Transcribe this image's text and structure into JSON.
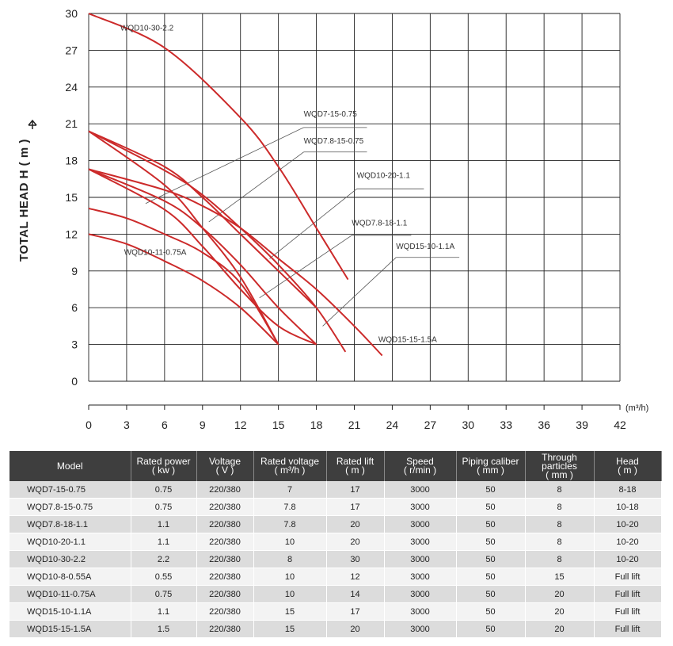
{
  "chart_data": {
    "type": "line",
    "ylabel": "TOTAL HEAD  H ( m )",
    "xunit": "(m³/h)",
    "xlim": [
      0,
      42
    ],
    "ylim": [
      0,
      30
    ],
    "xticks": [
      0,
      3,
      6,
      9,
      12,
      15,
      18,
      21,
      24,
      27,
      30,
      33,
      36,
      39,
      42
    ],
    "yticks": [
      0,
      3,
      6,
      9,
      12,
      15,
      18,
      21,
      24,
      27,
      30
    ],
    "grid": true,
    "line_color": "#cc2a2a",
    "series": [
      {
        "name": "WQD10-30-2.2",
        "x": [
          0,
          6,
          12,
          15,
          18,
          20.5
        ],
        "y": [
          30,
          27.2,
          21.5,
          17.5,
          12.5,
          8.3
        ]
      },
      {
        "name": "WQD7-15-0.75",
        "x": [
          0,
          6,
          9,
          12,
          15
        ],
        "y": [
          20.4,
          16,
          12.5,
          8.5,
          3
        ]
      },
      {
        "name": "WQD7.8-15-0.75",
        "x": [
          0,
          6,
          9,
          12,
          15,
          18
        ],
        "y": [
          17.3,
          14,
          11,
          7.5,
          4.5,
          3
        ]
      },
      {
        "name": "WQD10-20-1.1",
        "x": [
          0,
          6,
          9,
          12,
          15,
          18
        ],
        "y": [
          20.4,
          17.5,
          15,
          12,
          9,
          6
        ]
      },
      {
        "name": "WQD7.8-18-1.1",
        "x": [
          0,
          6,
          9,
          12,
          15,
          18
        ],
        "y": [
          17.3,
          14.7,
          12.5,
          9.5,
          6,
          3
        ]
      },
      {
        "name": "WQD15-10-1.1A",
        "x": [
          0,
          6,
          9,
          12,
          15,
          18,
          20.3
        ],
        "y": [
          20.4,
          17.2,
          15.2,
          12.5,
          9.5,
          6,
          2.4
        ]
      },
      {
        "name": "WQD15-15-1.5A",
        "x": [
          0,
          6,
          9,
          12,
          15,
          18,
          21,
          23.2
        ],
        "y": [
          17.3,
          15.6,
          14.3,
          12.5,
          10,
          7.5,
          4.5,
          2.1
        ]
      },
      {
        "name": "WQD10-11-0.75A",
        "x": [
          0,
          3,
          6,
          9,
          12,
          15
        ],
        "y": [
          12,
          11.2,
          9.8,
          8.2,
          6,
          3
        ]
      },
      {
        "name": "WQD10-8-0.55A",
        "x": [
          0,
          3,
          6,
          9,
          12,
          15
        ],
        "y": [
          14.1,
          13.3,
          12,
          10.5,
          8,
          3
        ]
      }
    ],
    "annotations": [
      {
        "text": "WQD10-30-2.2",
        "x": 2.5,
        "y": 28.6
      },
      {
        "text": "WQD7-15-0.75",
        "x": 17,
        "y": 21.6,
        "line_from": [
          4.5,
          14.5
        ],
        "line_to": [
          22,
          20.7
        ]
      },
      {
        "text": "WQD7.8-15-0.75",
        "x": 17,
        "y": 19.4,
        "line_from": [
          9.5,
          13
        ],
        "line_to": [
          22,
          18.7
        ]
      },
      {
        "text": "WQD10-20-1.1",
        "x": 21.2,
        "y": 16.6,
        "line_from": [
          14.3,
          10
        ],
        "line_to": [
          26.5,
          15.7
        ]
      },
      {
        "text": "WQD7.8-18-1.1",
        "x": 20.8,
        "y": 12.7,
        "line_from": [
          13.5,
          6.8
        ],
        "line_to": [
          25.5,
          11.9
        ]
      },
      {
        "text": "WQD15-10-1.1A",
        "x": 24.3,
        "y": 10.8,
        "line_from": [
          18.5,
          4.5
        ],
        "line_to": [
          29.3,
          10.1
        ]
      },
      {
        "text": "WQD10-11-0.75A",
        "x": 2.8,
        "y": 10.3
      },
      {
        "text": "WQD15-15-1.5A",
        "x": 22.9,
        "y": 3.2
      }
    ]
  },
  "table": {
    "headers": [
      [
        "Model"
      ],
      [
        "Rated power",
        "( kw )"
      ],
      [
        "Voltage",
        "( V )"
      ],
      [
        "Rated voltage",
        "( m³/h )"
      ],
      [
        "Rated lift",
        "( m )"
      ],
      [
        "Speed",
        "( r/min )"
      ],
      [
        "Piping caliber",
        "( mm )"
      ],
      [
        "Through",
        "particles",
        "( mm )"
      ],
      [
        "Head",
        "( m )"
      ]
    ],
    "rows": [
      [
        "WQD7-15-0.75",
        "0.75",
        "220/380",
        "7",
        "17",
        "3000",
        "50",
        "8",
        "8-18"
      ],
      [
        "WQD7.8-15-0.75",
        "0.75",
        "220/380",
        "7.8",
        "17",
        "3000",
        "50",
        "8",
        "10-18"
      ],
      [
        "WQD7.8-18-1.1",
        "1.1",
        "220/380",
        "7.8",
        "20",
        "3000",
        "50",
        "8",
        "10-20"
      ],
      [
        "WQD10-20-1.1",
        "1.1",
        "220/380",
        "10",
        "20",
        "3000",
        "50",
        "8",
        "10-20"
      ],
      [
        "WQD10-30-2.2",
        "2.2",
        "220/380",
        "8",
        "30",
        "3000",
        "50",
        "8",
        "10-20"
      ],
      [
        "WQD10-8-0.55A",
        "0.55",
        "220/380",
        "10",
        "12",
        "3000",
        "50",
        "15",
        "Full lift"
      ],
      [
        "WQD10-11-0.75A",
        "0.75",
        "220/380",
        "10",
        "14",
        "3000",
        "50",
        "20",
        "Full lift"
      ],
      [
        "WQD15-10-1.1A",
        "1.1",
        "220/380",
        "15",
        "17",
        "3000",
        "50",
        "20",
        "Full lift"
      ],
      [
        "WQD15-15-1.5A",
        "1.5",
        "220/380",
        "15",
        "20",
        "3000",
        "50",
        "20",
        "Full lift"
      ]
    ]
  }
}
